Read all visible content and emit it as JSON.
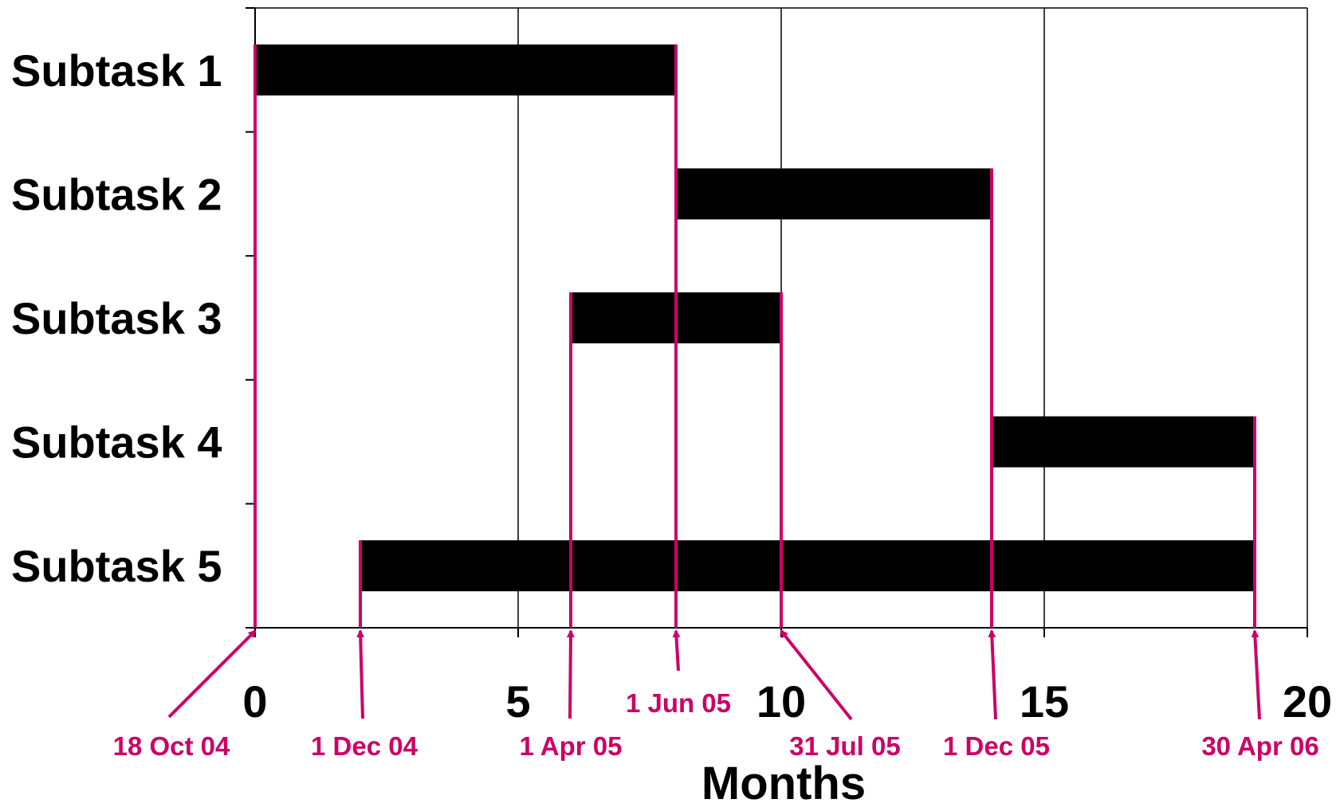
{
  "chart_data": {
    "type": "bar",
    "subtype": "gantt",
    "xlabel": "Months",
    "xlim": [
      0,
      20
    ],
    "x_ticks": [
      0,
      5,
      10,
      15,
      20
    ],
    "grid_x": true,
    "categories": [
      "Subtask 1",
      "Subtask 2",
      "Subtask 3",
      "Subtask 4",
      "Subtask 5"
    ],
    "tasks": [
      {
        "label": "Subtask 1",
        "start": 0.0,
        "end": 8.0
      },
      {
        "label": "Subtask 2",
        "start": 8.0,
        "end": 14.0
      },
      {
        "label": "Subtask 3",
        "start": 6.0,
        "end": 10.0
      },
      {
        "label": "Subtask 4",
        "start": 14.0,
        "end": 19.0
      },
      {
        "label": "Subtask 5",
        "start": 2.0,
        "end": 19.0
      }
    ],
    "milestones": [
      {
        "label": "18 Oct 04",
        "month": 0.0
      },
      {
        "label": "1 Dec 04",
        "month": 2.0
      },
      {
        "label": "1 Apr 05",
        "month": 6.0
      },
      {
        "label": "1 Jun 05",
        "month": 8.0
      },
      {
        "label": "31 Jul 05",
        "month": 10.0
      },
      {
        "label": "1 Dec 05",
        "month": 14.0
      },
      {
        "label": "30 Apr 06",
        "month": 19.0
      }
    ],
    "colors": {
      "bar": "#000000",
      "milestone": "#cc0066",
      "grid": "#000000"
    }
  }
}
